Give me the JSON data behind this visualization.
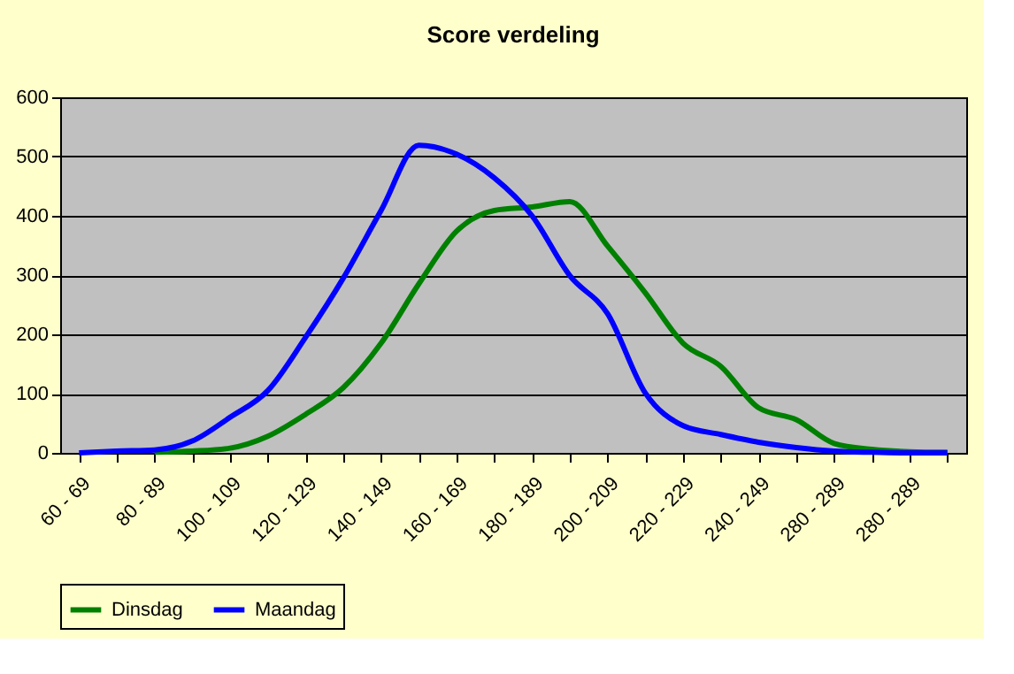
{
  "chart_data": {
    "type": "line",
    "title": "Score verdeling",
    "categories": [
      "60 - 69",
      null,
      "80 - 89",
      null,
      "100 - 109",
      null,
      "120 - 129",
      null,
      "140 - 149",
      null,
      "160 - 169",
      null,
      "180 - 189",
      null,
      "200 - 209",
      null,
      "220 - 229",
      null,
      "240 - 249",
      null,
      "280 - 289",
      null,
      "280 - 289",
      null
    ],
    "series": [
      {
        "name": "Dinsdag",
        "color": "#008000",
        "values": [
          null,
          null,
          1,
          3,
          8,
          28,
          65,
          110,
          185,
          285,
          374,
          409,
          415,
          424,
          349,
          270,
          185,
          146,
          76,
          56,
          16,
          6,
          2,
          1
        ]
      },
      {
        "name": "Maandag",
        "color": "#0000ff",
        "values": [
          0,
          3,
          5,
          20,
          60,
          105,
          195,
          295,
          409,
          519,
          504,
          464,
          400,
          299,
          235,
          101,
          46,
          31,
          18,
          9,
          3,
          1,
          0,
          0
        ]
      }
    ],
    "ylim": [
      0,
      600
    ],
    "yticks": [
      0,
      100,
      200,
      300,
      400,
      500,
      600
    ],
    "grid": "y",
    "legend": "bottom",
    "marker": "none",
    "line_style": "solid"
  }
}
